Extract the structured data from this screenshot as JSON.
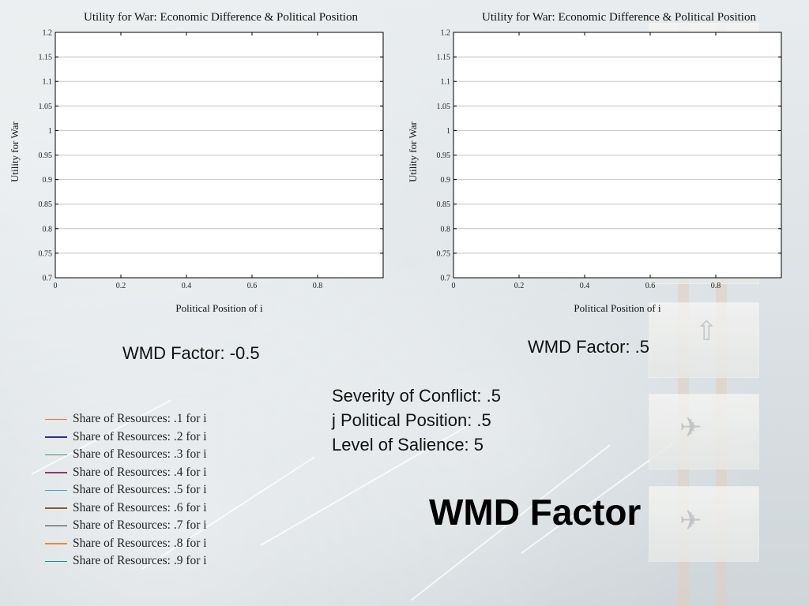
{
  "slide": {
    "title": "WMD Factor",
    "parameters": [
      "Severity of Conflict: .5",
      "j Political Position: .5",
      "Level of Salience: 5"
    ]
  },
  "colors": {
    "grid": "#c4c4c4",
    "axis": "#000000",
    "plot_bg": "#ffffff"
  },
  "chart_data": [
    {
      "type": "line",
      "title": "Utility for War: Economic Difference & Political Position",
      "xlabel": "Political Position of i",
      "ylabel": "Utility for War",
      "xlim": [
        0,
        1
      ],
      "ylim": [
        0.7,
        1.2
      ],
      "x_ticks": [
        "0",
        "0.2",
        "0.4",
        "0.6",
        "0.8"
      ],
      "y_ticks": [
        "0.7",
        "0.75",
        "0.8",
        "0.85",
        "0.9",
        "0.95",
        "1",
        "1.05",
        "1.1",
        "1.15",
        "1.2"
      ],
      "grid": true,
      "caption": "WMD Factor: -0.5",
      "series": []
    },
    {
      "type": "line",
      "title": "Utility for War: Economic Difference & Political Position",
      "xlabel": "Political Position of i",
      "ylabel": "Utility for War",
      "xlim": [
        0,
        1
      ],
      "ylim": [
        0.7,
        1.2
      ],
      "x_ticks": [
        "0",
        "0.2",
        "0.4",
        "0.6",
        "0.8"
      ],
      "y_ticks": [
        "0.7",
        "0.75",
        "0.8",
        "0.85",
        "0.9",
        "0.95",
        "1",
        "1.05",
        "1.1",
        "1.15",
        "1.2"
      ],
      "grid": true,
      "caption": "WMD Factor: .5",
      "series": []
    }
  ],
  "legend": {
    "items": [
      {
        "label": "Share of Resources: .1 for i",
        "color": "#e8763a"
      },
      {
        "label": "Share of Resources: .2 for i",
        "color": "#2b2f8f"
      },
      {
        "label": "Share of Resources: .3 for i",
        "color": "#2fa05a"
      },
      {
        "label": "Share of Resources: .4 for i",
        "color": "#8a3a6a"
      },
      {
        "label": "Share of Resources: .5 for i",
        "color": "#3aa6c4"
      },
      {
        "label": "Share of Resources: .6 for i",
        "color": "#8a5a3a"
      },
      {
        "label": "Share of Resources: .7 for i",
        "color": "#333333"
      },
      {
        "label": "Share of Resources: .8 for i",
        "color": "#f08a2a"
      },
      {
        "label": "Share of Resources: .9 for i",
        "color": "#1f8a8a"
      }
    ]
  }
}
